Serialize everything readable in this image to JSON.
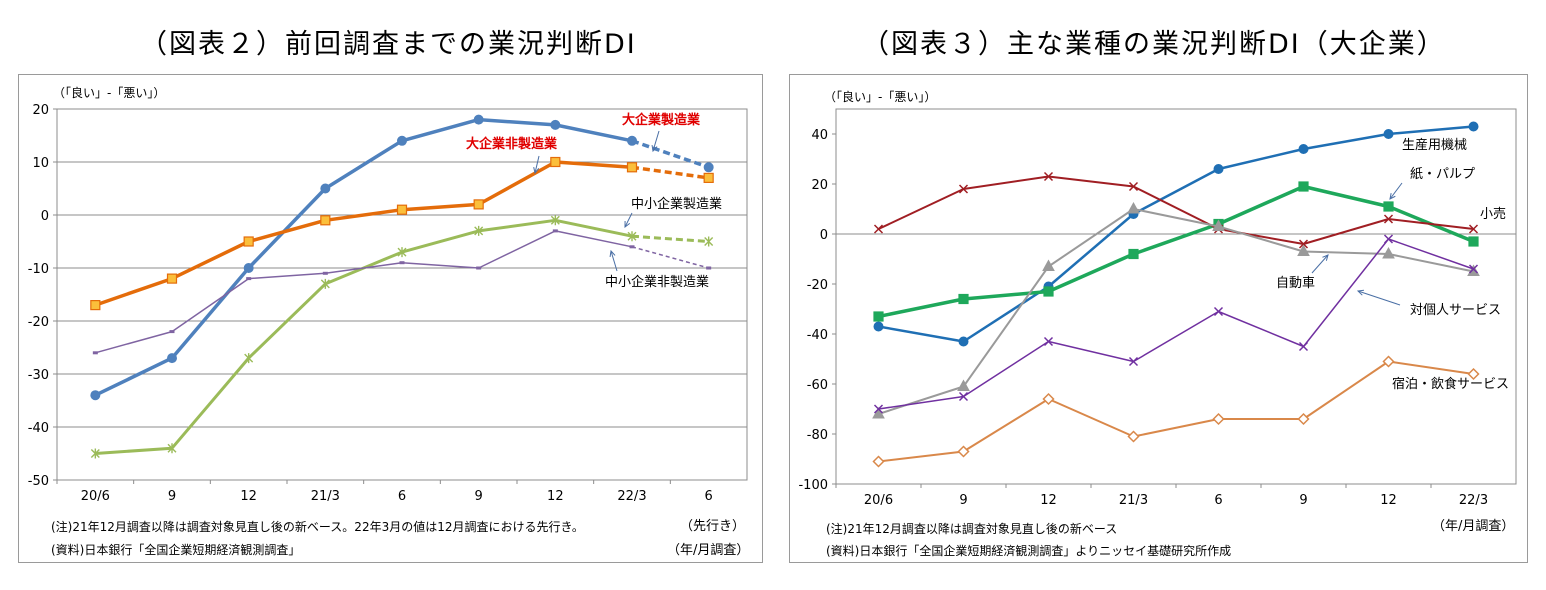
{
  "titles": {
    "left": "（図表２）前回調査までの業況判断DI",
    "right": "（図表３）主な業種の業況判断DI（大企業）"
  },
  "notes": {
    "left_note": "(注)21年12月調査以降は調査対象見直し後の新ベース。22年3月の値は12月調査における先行き。",
    "left_source": "(資料)日本銀行「全国企業短期経済観測調査」",
    "left_forecast": "（先行き）",
    "left_unit": "（年/月調査）",
    "right_note": "(注)21年12月調査以降は調査対象見直し後の新ベース",
    "right_source": "(資料)日本銀行「全国企業短期経済観測調査」よりニッセイ基礎研究所作成",
    "right_unit": "（年/月調査）"
  },
  "chart_data": [
    {
      "type": "line",
      "title": "（図表２）前回調査までの業況判断DI",
      "ylabel": "（「良い」-「悪い」）",
      "xlabel": "（年/月調査）",
      "categories": [
        "20/6",
        "9",
        "12",
        "21/3",
        "6",
        "9",
        "12",
        "22/3",
        "6"
      ],
      "ylim": [
        -50,
        20
      ],
      "yticks": [
        20,
        10,
        0,
        -10,
        -20,
        -30,
        -40,
        -50
      ],
      "grid": true,
      "series": [
        {
          "name": "大企業製造業",
          "color": "#4f81bd",
          "marker": "circle",
          "width": 3.5,
          "values": [
            -34,
            -27,
            -10,
            5,
            14,
            18,
            17,
            14,
            9
          ],
          "dashed_from": 7,
          "label_color": "#e00000"
        },
        {
          "name": "大企業非製造業",
          "color": "#e46c0a",
          "marker": "square",
          "width": 3.5,
          "values": [
            -17,
            -12,
            -5,
            -1,
            1,
            2,
            10,
            9,
            7
          ],
          "dashed_from": 7,
          "label_color": "#e00000"
        },
        {
          "name": "中小企業製造業",
          "color": "#9bbb59",
          "marker": "star",
          "width": 3,
          "values": [
            -45,
            -44,
            -27,
            -13,
            -7,
            -3,
            -1,
            -4,
            -5
          ],
          "dashed_from": 7,
          "label_color": "#000000"
        },
        {
          "name": "中小企業非製造業",
          "color": "#7f64a2",
          "marker": "dash",
          "width": 1.5,
          "values": [
            -26,
            -22,
            -12,
            -11,
            -9,
            -10,
            -3,
            -6,
            -10
          ],
          "dashed_from": 7,
          "label_color": "#000000"
        }
      ],
      "forecast_label": "（先行き）"
    },
    {
      "type": "line",
      "title": "（図表３）主な業種の業況判断DI（大企業）",
      "ylabel": "（「良い」-「悪い」）",
      "xlabel": "（年/月調査）",
      "categories": [
        "20/6",
        "9",
        "12",
        "21/3",
        "6",
        "9",
        "12",
        "22/3"
      ],
      "ylim": [
        -100,
        50
      ],
      "yticks": [
        40,
        20,
        0,
        -20,
        -40,
        -60,
        -80,
        -100
      ],
      "grid": false,
      "series": [
        {
          "name": "生産用機械",
          "color": "#1f6fb4",
          "marker": "circle",
          "width": 2.5,
          "values": [
            -37,
            -43,
            -21,
            8,
            26,
            34,
            40,
            43
          ]
        },
        {
          "name": "紙・パルプ",
          "color": "#1ea85b",
          "marker": "square",
          "width": 3.5,
          "values": [
            -33,
            -26,
            -23,
            -8,
            4,
            19,
            11,
            -3
          ]
        },
        {
          "name": "小売",
          "color": "#a01e23",
          "marker": "x",
          "width": 2,
          "values": [
            2,
            18,
            23,
            19,
            2,
            -4,
            6,
            2
          ]
        },
        {
          "name": "自動車",
          "color": "#9a9a9a",
          "marker": "triangle",
          "width": 2,
          "values": [
            -72,
            -61,
            -13,
            10,
            3,
            -7,
            -8,
            -15
          ]
        },
        {
          "name": "対個人サービス",
          "color": "#7030a0",
          "marker": "x",
          "width": 1.5,
          "values": [
            -70,
            -65,
            -43,
            -51,
            -31,
            -45,
            -2,
            -14
          ]
        },
        {
          "name": "宿泊・飲食サービス",
          "color": "#d9884a",
          "marker": "diamond",
          "width": 2,
          "values": [
            -91,
            -87,
            -66,
            -81,
            -74,
            -74,
            -51,
            -56
          ]
        }
      ]
    }
  ]
}
